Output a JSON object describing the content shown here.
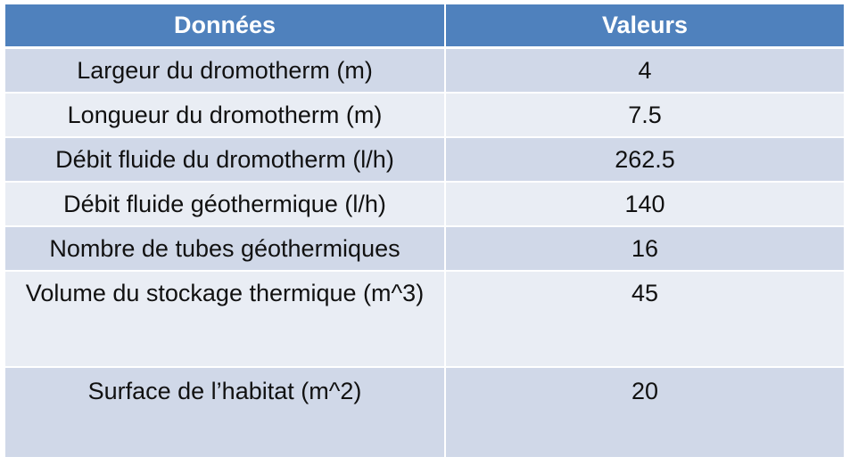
{
  "table": {
    "headers": [
      "Données",
      "Valeurs"
    ],
    "rows": [
      {
        "label": "Largeur du dromotherm (m)",
        "value": "4"
      },
      {
        "label": "Longueur du dromotherm (m)",
        "value": "7.5"
      },
      {
        "label": "Débit fluide du dromotherm (l/h)",
        "value": "262.5"
      },
      {
        "label": "Débit fluide géothermique (l/h)",
        "value": "140"
      },
      {
        "label": "Nombre de tubes géothermiques",
        "value": "16"
      },
      {
        "label": "Volume du stockage thermique (m^3)",
        "value": "45"
      },
      {
        "label": "Surface de l’habitat (m^2)",
        "value": "20"
      }
    ],
    "colors": {
      "header": "#4f81bd",
      "row_dark": "#d0d8e8",
      "row_light": "#e9edf4"
    }
  }
}
